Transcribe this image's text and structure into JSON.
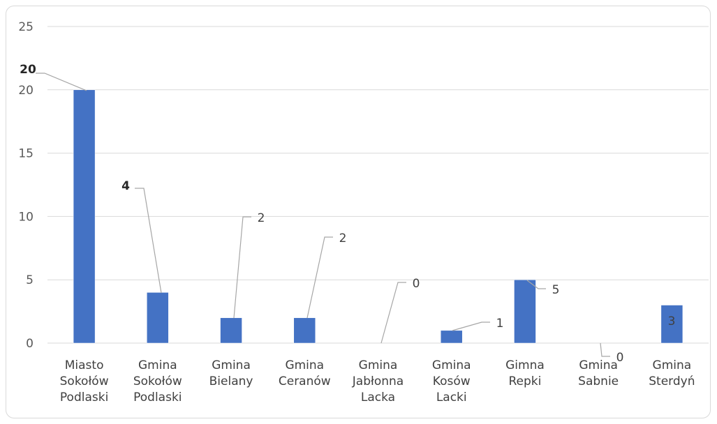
{
  "chart_data": {
    "type": "bar",
    "title": "",
    "xlabel": "",
    "ylabel": "",
    "ylim": [
      0,
      25
    ],
    "yticks": [
      0,
      5,
      10,
      15,
      20,
      25
    ],
    "grid": true,
    "legend": "none",
    "bar_color": "#4472C4",
    "categories": [
      [
        "Miasto",
        "Sokołów",
        "Podlaski"
      ],
      [
        "Gmina",
        "Sokołów",
        "Podlaski"
      ],
      [
        "Gmina",
        "Bielany"
      ],
      [
        "Gmina",
        "Ceranów"
      ],
      [
        "Gmina",
        "Jabłonna",
        "Lacka"
      ],
      [
        "Gmina",
        "Kosów",
        "Lacki"
      ],
      [
        "Gimna",
        "Repki"
      ],
      [
        "Gmina",
        "Sabnie"
      ],
      [
        "Gmina",
        "Sterdyń"
      ]
    ],
    "values": [
      20,
      4,
      2,
      2,
      0,
      1,
      5,
      0,
      3
    ],
    "data_labels": [
      "20",
      "4",
      "2",
      "2",
      "0",
      "1",
      "5",
      "0",
      "3"
    ]
  }
}
